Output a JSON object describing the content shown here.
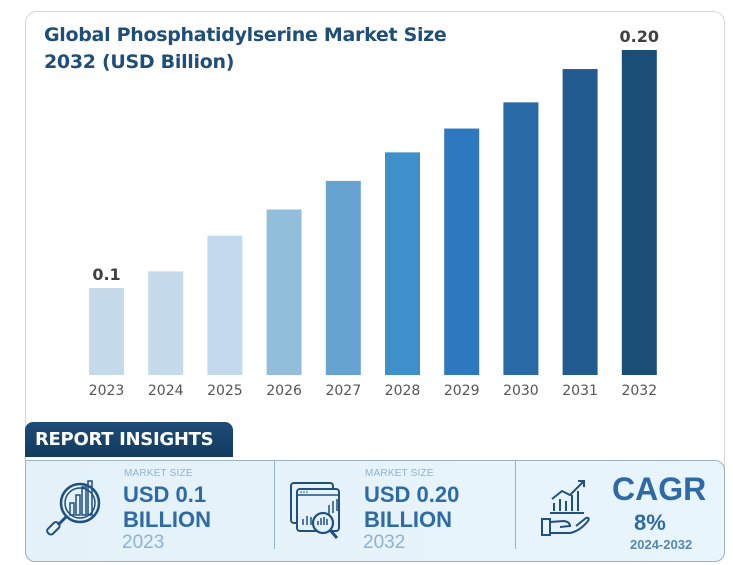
{
  "chart_data": {
    "type": "bar",
    "title": "Global Phosphatidylserine Market Size 2032 (USD Billion)",
    "xlabel": "",
    "ylabel": "",
    "categories": [
      "2023",
      "2024",
      "2025",
      "2026",
      "2027",
      "2028",
      "2029",
      "2030",
      "2031",
      "2032"
    ],
    "values": [
      0.1,
      0.107,
      0.122,
      0.133,
      0.145,
      0.157,
      0.167,
      0.178,
      0.192,
      0.2
    ],
    "data_labels": [
      {
        "category": "2023",
        "text": "0.1"
      },
      {
        "category": "2032",
        "text": "0.20"
      }
    ],
    "colors": [
      "#c5dbeb",
      "#c5dbeb",
      "#c2d9ee",
      "#93bedb",
      "#66a3d0",
      "#3f8fcb",
      "#2e78c0",
      "#2869a6",
      "#225b8f",
      "#1a4e77"
    ],
    "grid": false,
    "axis_visible": false,
    "legend": "none"
  },
  "insights": {
    "tab_label": "REPORT INSIGHTS",
    "cards": [
      {
        "icon": "magnifier-chart-icon",
        "label": "MARKET SIZE",
        "value": "USD 0.1",
        "unit": "BILLION",
        "year": "2023"
      },
      {
        "icon": "dashboard-analysis-icon",
        "label": "MARKET SIZE",
        "value": "USD 0.20",
        "unit": "BILLION",
        "year": "2032"
      },
      {
        "icon": "hand-growth-icon",
        "label": "CAGR",
        "value": "8%",
        "range": "2024-2032"
      }
    ]
  }
}
